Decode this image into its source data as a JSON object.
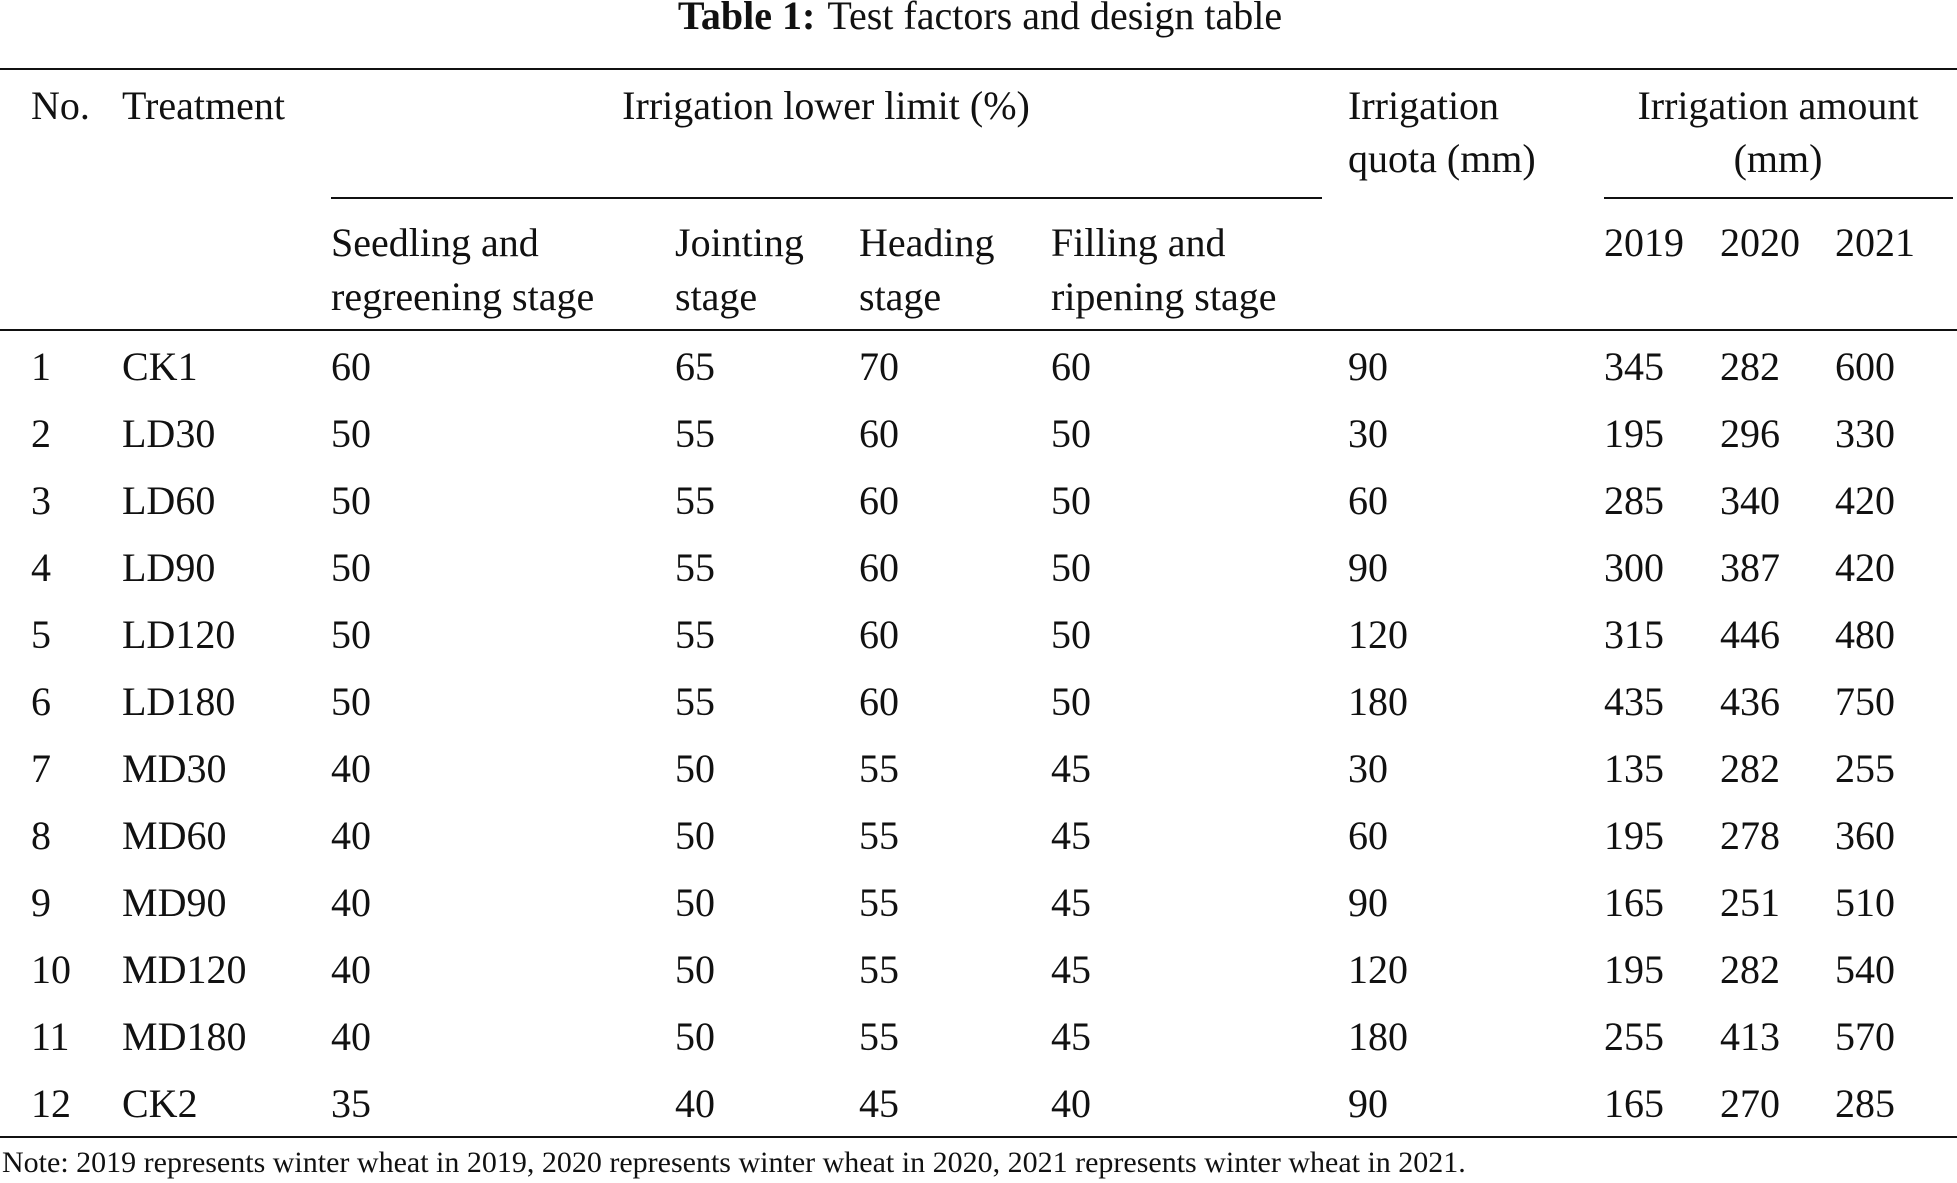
{
  "title": {
    "label": "Table 1:",
    "text": "Test factors and design table"
  },
  "table": {
    "header": {
      "no": "No.",
      "treatment": "Treatment",
      "lower_limit": "Irrigation lower limit (%)",
      "quota": [
        "Irrigation",
        "quota (mm)"
      ],
      "amount": [
        "Irrigation amount",
        "(mm)"
      ],
      "stages": [
        [
          "Seedling and",
          "regreening stage"
        ],
        [
          "Jointing",
          "stage"
        ],
        [
          "Heading",
          "stage"
        ],
        [
          "Filling and",
          "ripening stage"
        ]
      ],
      "years": [
        "2019",
        "2020",
        "2021"
      ]
    },
    "rows": [
      [
        "1",
        "CK1",
        "60",
        "65",
        "70",
        "60",
        "90",
        "345",
        "282",
        "600"
      ],
      [
        "2",
        "LD30",
        "50",
        "55",
        "60",
        "50",
        "30",
        "195",
        "296",
        "330"
      ],
      [
        "3",
        "LD60",
        "50",
        "55",
        "60",
        "50",
        "60",
        "285",
        "340",
        "420"
      ],
      [
        "4",
        "LD90",
        "50",
        "55",
        "60",
        "50",
        "90",
        "300",
        "387",
        "420"
      ],
      [
        "5",
        "LD120",
        "50",
        "55",
        "60",
        "50",
        "120",
        "315",
        "446",
        "480"
      ],
      [
        "6",
        "LD180",
        "50",
        "55",
        "60",
        "50",
        "180",
        "435",
        "436",
        "750"
      ],
      [
        "7",
        "MD30",
        "40",
        "50",
        "55",
        "45",
        "30",
        "135",
        "282",
        "255"
      ],
      [
        "8",
        "MD60",
        "40",
        "50",
        "55",
        "45",
        "60",
        "195",
        "278",
        "360"
      ],
      [
        "9",
        "MD90",
        "40",
        "50",
        "55",
        "45",
        "90",
        "165",
        "251",
        "510"
      ],
      [
        "10",
        "MD120",
        "40",
        "50",
        "55",
        "45",
        "120",
        "195",
        "282",
        "540"
      ],
      [
        "11",
        "MD180",
        "40",
        "50",
        "55",
        "45",
        "180",
        "255",
        "413",
        "570"
      ],
      [
        "12",
        "CK2",
        "35",
        "40",
        "45",
        "40",
        "90",
        "165",
        "270",
        "285"
      ]
    ]
  },
  "note": "Note: 2019 represents winter wheat in 2019, 2020 represents winter wheat in 2020, 2021 represents winter wheat in 2021."
}
